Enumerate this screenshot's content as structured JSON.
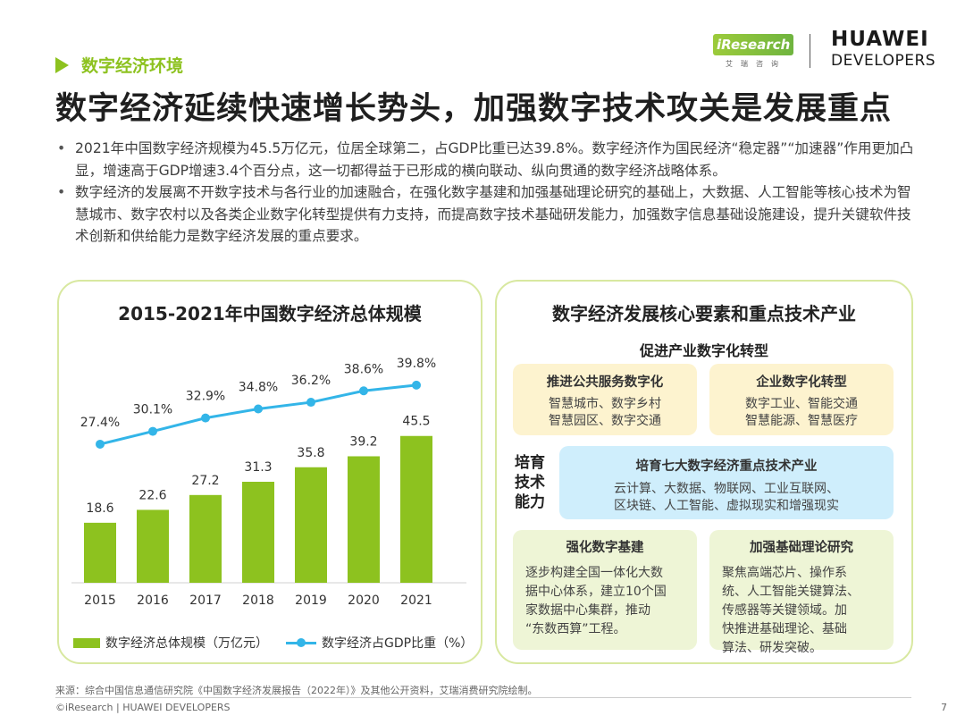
{
  "header": {
    "section": "数字经济环境",
    "title": "数字经济延续快速增长势头，加强数字技术攻关是发展重点",
    "logo_iresearch": "iResearch",
    "logo_iresearch_sub": "艾瑞咨询",
    "logo_huawei_line1": "HUAWEI",
    "logo_huawei_line2": "DEVELOPERS"
  },
  "bullets": [
    "2021年中国数字经济规模为45.5万亿元，位居全球第二，占GDP比重已达39.8%。数字经济作为国民经济“稳定器”“加速器”作用更加凸显，增速高于GDP增速3.4个百分点，这一切都得益于已形成的横向联动、纵向贯通的数字经济战略体系。",
    "数字经济的发展离不开数字技术与各行业的加速融合，在强化数字基建和加强基础理论研究的基础上，大数据、人工智能等核心技术为智慧城市、数字农村以及各类企业数字化转型提供有力支持，而提高数字技术基础研发能力，加强数字信息基础设施建设，提升关键软件技术创新和供给能力是数字经济发展的重点要求。"
  ],
  "chart_data": {
    "type": "bar",
    "title": "2015-2021年中国数字经济总体规模",
    "categories": [
      "2015",
      "2016",
      "2017",
      "2018",
      "2019",
      "2020",
      "2021"
    ],
    "series": [
      {
        "name": "数字经济总体规模（万亿元）",
        "type": "bar",
        "values": [
          18.6,
          22.6,
          27.2,
          31.3,
          35.8,
          39.2,
          45.5
        ],
        "labels": [
          "18.6",
          "22.6",
          "27.2",
          "31.3",
          "35.8",
          "39.2",
          "45.5"
        ]
      },
      {
        "name": "数字经济占GDP比重（%）",
        "type": "line",
        "values": [
          27.4,
          30.1,
          32.9,
          34.8,
          36.2,
          38.6,
          39.8
        ],
        "labels": [
          "27.4%",
          "30.1%",
          "32.9%",
          "34.8%",
          "36.2%",
          "38.6%",
          "39.8%"
        ]
      }
    ],
    "xlabel": "",
    "ylabel": "",
    "bar_color": "#8dc21f",
    "line_color": "#33b5e8",
    "legend": "bottom"
  },
  "right_panel": {
    "title": "数字经济发展核心要素和重点技术产业",
    "subtitle": "促进产业数字化转型",
    "boxes": [
      {
        "title": "推进公共服务数字化",
        "lines": [
          "智慧城市、数字乡村",
          "智慧园区、数字交通"
        ]
      },
      {
        "title": "企业数字化转型",
        "lines": [
          "数字工业、智能交通",
          "智慧能源、智慧医疗"
        ]
      },
      {
        "title": "培育七大数字经济重点技术产业",
        "lines": [
          "云计算、大数据、物联网、工业互联网、",
          "区块链、人工智能、虚拟现实和增强现实"
        ]
      },
      {
        "title": "强化数字基建",
        "lines": [
          "逐步构建全国一体化大数",
          "据中心体系，建立10个国",
          "家数据中心集群，推动",
          "“东数西算”工程。"
        ]
      },
      {
        "title": "加强基础理论研究",
        "lines": [
          "聚焦高端芯片、操作系",
          "统、人工智能关键算法、",
          "传感器等关键领域。加",
          "快推进基础理论、基础",
          "算法、研发突破。"
        ]
      }
    ],
    "side_label": [
      "培育",
      "技术",
      "能力"
    ]
  },
  "footer": {
    "source": "来源：综合中国信息通信研究院《中国数字经济发展报告（2022年）》及其他公开资料，艾瑞消费研究院绘制。",
    "copyright": "©iResearch | HUAWEI DEVELOPERS",
    "page": "7"
  }
}
